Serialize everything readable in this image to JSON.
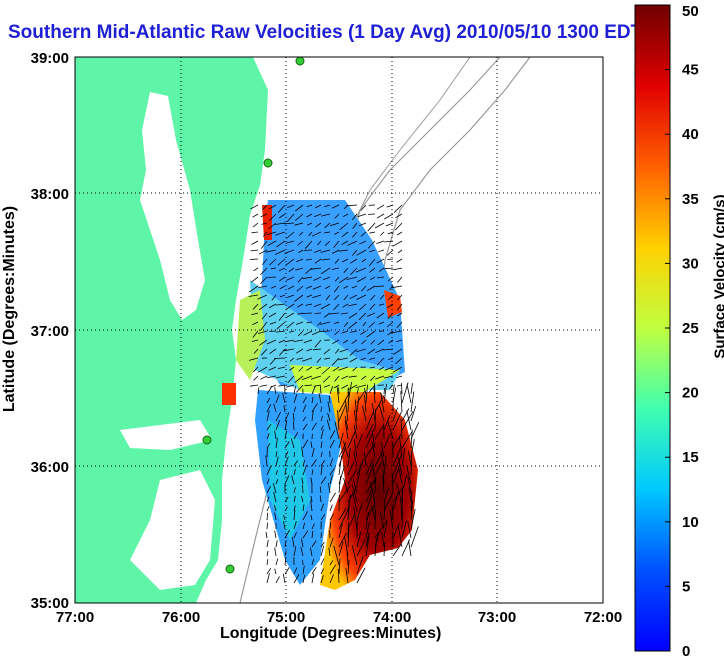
{
  "title": "Southern Mid-Atlantic Raw Velocities (1 Day Avg) 2010/05/10 1300 EDT",
  "map": {
    "xlabel": "Longitude (Degrees:Minutes)",
    "ylabel": "Latitude (Degrees:Minutes)",
    "x_ticks": [
      "77:00",
      "76:00",
      "75:00",
      "74:00",
      "73:00",
      "72:00"
    ],
    "y_ticks": [
      "39:00",
      "38:00",
      "37:00",
      "36:00",
      "35:00"
    ],
    "lon_range": [
      -77,
      -72
    ],
    "lat_range": [
      35,
      39
    ],
    "grid": "dotted",
    "land_color": "#5ef5a8",
    "contour_color": "#9a9a9a"
  },
  "colorbar": {
    "label": "Surface Velocity (cm/s)",
    "ticks": [
      "0",
      "5",
      "10",
      "15",
      "20",
      "25",
      "30",
      "35",
      "40",
      "45",
      "50"
    ],
    "range": [
      0,
      50
    ]
  }
}
